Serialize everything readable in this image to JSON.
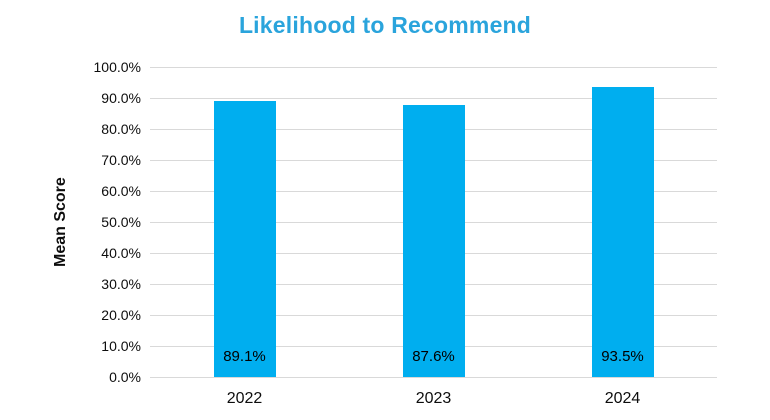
{
  "chart_data": {
    "type": "bar",
    "title": "Likelihood to Recommend",
    "xlabel": "",
    "ylabel": "Mean Score",
    "categories": [
      "2022",
      "2023",
      "2024"
    ],
    "values": [
      89.1,
      87.6,
      93.5
    ],
    "data_labels": [
      "89.1%",
      "87.6%",
      "93.5%"
    ],
    "ylim": [
      0,
      100
    ],
    "ytick_step": 10,
    "ytick_labels": [
      "100.0%",
      "90.0%",
      "80.0%",
      "70.0%",
      "60.0%",
      "50.0%",
      "40.0%",
      "30.0%",
      "20.0%",
      "10.0%",
      "0.0%"
    ],
    "grid": true,
    "legend_position": "none",
    "colors": {
      "bar": "#00AEEF",
      "title": "#2AA4DC",
      "gridline": "#D9D9D9",
      "text": "#0D0D0D",
      "background": "#FFFFFF"
    }
  }
}
